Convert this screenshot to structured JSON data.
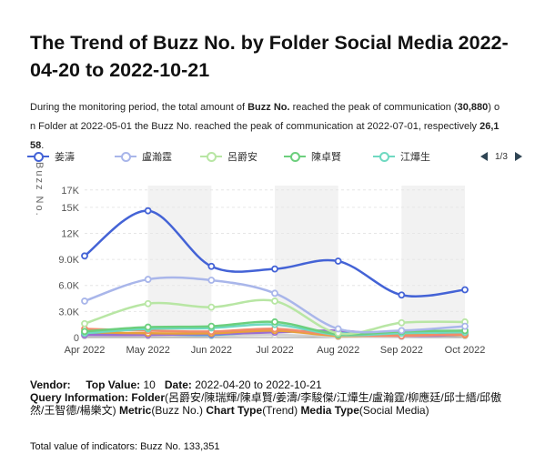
{
  "title": "The Trend of Buzz No. by Folder Social Media 2022-04-20 to 2022-10-21",
  "description": {
    "p1": "During the monitoring period, the total amount of ",
    "b1": "Buzz No.",
    "p2": " reached the peak of communication (",
    "b2": "30,880",
    "p3": ") on Folder at 2022-05-01 the Buzz No. reached the peak of communication at 2022-07-01, respectively ",
    "b3": "26,158",
    "p4": "."
  },
  "legend": {
    "items": [
      {
        "label": "姜濤",
        "color": "#4463d6"
      },
      {
        "label": "盧瀚霆",
        "color": "#a9b6ea"
      },
      {
        "label": "呂爵安",
        "color": "#b8e6a4"
      },
      {
        "label": "陳卓賢",
        "color": "#6ccf7d"
      },
      {
        "label": "江𤒹生",
        "color": "#6fd9c1"
      }
    ],
    "page": "1/3"
  },
  "chart_data": {
    "type": "line",
    "ylabel": "Buzz No.",
    "categories": [
      "Apr 2022",
      "May 2022",
      "Jun 2022",
      "Jul 2022",
      "Aug 2022",
      "Sep 2022",
      "Oct 2022"
    ],
    "y_ticks": [
      "0",
      "3.0K",
      "6.0K",
      "9.0K",
      "12K",
      "15K",
      "17K"
    ],
    "y_tick_values": [
      0,
      3000,
      6000,
      9000,
      12000,
      15000,
      17000
    ],
    "ylim": [
      0,
      17500
    ],
    "shaded_bands": [
      [
        1,
        2
      ],
      [
        3,
        4
      ],
      [
        5,
        6
      ]
    ],
    "series": [
      {
        "name": "姜濤",
        "color": "#4463d6",
        "values": [
          9400,
          14600,
          8200,
          7900,
          8800,
          4900,
          5500
        ]
      },
      {
        "name": "盧瀚霆",
        "color": "#a9b6ea",
        "values": [
          4200,
          6700,
          6600,
          5100,
          1000,
          800,
          1300
        ]
      },
      {
        "name": "呂爵安",
        "color": "#b8e6a4",
        "values": [
          1600,
          3900,
          3500,
          4200,
          500,
          1700,
          1800
        ]
      },
      {
        "name": "陳卓賢",
        "color": "#6ccf7d",
        "values": [
          700,
          1200,
          1300,
          1800,
          400,
          700,
          800
        ]
      },
      {
        "name": "江𤒹生",
        "color": "#6fd9c1",
        "values": [
          500,
          1000,
          1100,
          1500,
          300,
          500,
          600
        ]
      },
      {
        "color": "#f28b6b",
        "values": [
          1000,
          800,
          700,
          1000,
          300,
          200,
          400
        ]
      },
      {
        "color": "#e8a03b",
        "values": [
          600,
          500,
          500,
          800,
          200,
          300,
          300
        ]
      },
      {
        "color": "#9b6fd0",
        "values": [
          300,
          300,
          400,
          600,
          800,
          200,
          300
        ]
      },
      {
        "color": "#4aa8d8",
        "values": [
          400,
          400,
          300,
          700,
          600,
          200,
          500
        ]
      },
      {
        "color": "#d1d1d1",
        "values": [
          200,
          200,
          200,
          300,
          100,
          100,
          200
        ]
      }
    ]
  },
  "meta": {
    "vendor_label": "Vendor:",
    "top_value_label": "Top Value:",
    "top_value": "10",
    "date_label": "Date:",
    "date_value": "2022-04-20 to 2022-10-21",
    "query_label": "Query Information:",
    "query_folder_label": "Folder",
    "query_folder_value": "(呂爵安/陳瑞輝/陳卓賢/姜濤/李駿傑/江𤒹生/盧瀚霆/柳應廷/邱士縉/邱傲然/王智德/楊樂文)",
    "query_metric_label": "Metric",
    "query_metric_value": "(Buzz No.)",
    "query_chart_label": "Chart Type",
    "query_chart_value": "(Trend)",
    "query_media_label": "Media Type",
    "query_media_value": "(Social Media)"
  },
  "total": "Total value of indicators: Buzz No. 133,351"
}
